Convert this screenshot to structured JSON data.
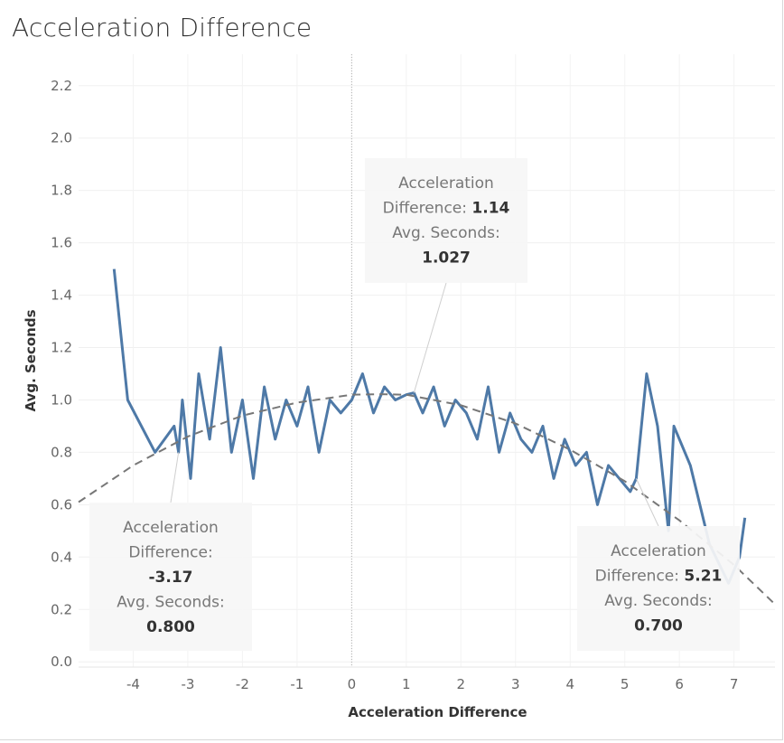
{
  "chart_data": {
    "type": "line",
    "title": "Acceleration Difference",
    "xlabel": "Acceleration Difference",
    "ylabel": "Avg. Seconds",
    "xlim": [
      -5.0,
      7.75
    ],
    "ylim": [
      -0.02,
      2.32
    ],
    "x_ticks": [
      "-4",
      "-3",
      "-2",
      "-1",
      "0",
      "1",
      "2",
      "3",
      "4",
      "5",
      "6",
      "7"
    ],
    "y_ticks": [
      "0.0",
      "0.2",
      "0.4",
      "0.6",
      "0.8",
      "1.0",
      "1.2",
      "1.4",
      "1.6",
      "1.8",
      "2.0",
      "2.2"
    ],
    "grid": true,
    "series": [
      {
        "role": "actual",
        "color": "#4e79a7",
        "x": [
          -4.35,
          -4.1,
          -3.6,
          -3.25,
          -3.17,
          -3.1,
          -2.95,
          -2.8,
          -2.6,
          -2.4,
          -2.2,
          -2.0,
          -1.8,
          -1.6,
          -1.4,
          -1.2,
          -1.0,
          -0.8,
          -0.6,
          -0.4,
          -0.2,
          0.0,
          0.2,
          0.4,
          0.6,
          0.8,
          1.0,
          1.14,
          1.3,
          1.5,
          1.7,
          1.9,
          2.1,
          2.3,
          2.5,
          2.7,
          2.9,
          3.1,
          3.3,
          3.5,
          3.7,
          3.9,
          4.1,
          4.3,
          4.5,
          4.7,
          4.9,
          5.1,
          5.21,
          5.4,
          5.6,
          5.8,
          5.9,
          6.2,
          6.55,
          6.9,
          7.1,
          7.2
        ],
        "y": [
          1.5,
          1.0,
          0.8,
          0.9,
          0.8,
          1.0,
          0.7,
          1.1,
          0.85,
          1.2,
          0.8,
          1.0,
          0.7,
          1.05,
          0.85,
          1.0,
          0.9,
          1.05,
          0.8,
          1.0,
          0.95,
          1.0,
          1.1,
          0.95,
          1.05,
          1.0,
          1.02,
          1.027,
          0.95,
          1.05,
          0.9,
          1.0,
          0.95,
          0.85,
          1.05,
          0.8,
          0.95,
          0.85,
          0.8,
          0.9,
          0.7,
          0.85,
          0.75,
          0.8,
          0.6,
          0.75,
          0.7,
          0.65,
          0.7,
          1.1,
          0.9,
          0.5,
          0.9,
          0.75,
          0.45,
          0.3,
          0.4,
          0.55
        ]
      },
      {
        "role": "trend",
        "color": "#777777",
        "x": [
          -5.0,
          -4.0,
          -3.0,
          -2.0,
          -1.0,
          0.0,
          0.5,
          1.0,
          2.0,
          3.0,
          4.0,
          5.0,
          6.0,
          7.0,
          7.75
        ],
        "y": [
          0.61,
          0.75,
          0.86,
          0.94,
          0.99,
          1.02,
          1.022,
          1.02,
          0.98,
          0.91,
          0.81,
          0.69,
          0.54,
          0.37,
          0.22
        ]
      }
    ],
    "zero_line_x": 0
  },
  "tooltips": [
    {
      "label1": "Acceleration",
      "label2a": "Difference: ",
      "value1": "1.14",
      "label3": "Avg. Seconds:",
      "value2": "1.027"
    },
    {
      "label1": "Acceleration",
      "label2a": "Difference:",
      "value1": "-3.17",
      "label3": "Avg. Seconds:",
      "value2": "0.800"
    },
    {
      "label1": "Acceleration",
      "label2a": "Difference: ",
      "value1": "5.21",
      "label3": "Avg. Seconds:",
      "value2": "0.700"
    }
  ]
}
